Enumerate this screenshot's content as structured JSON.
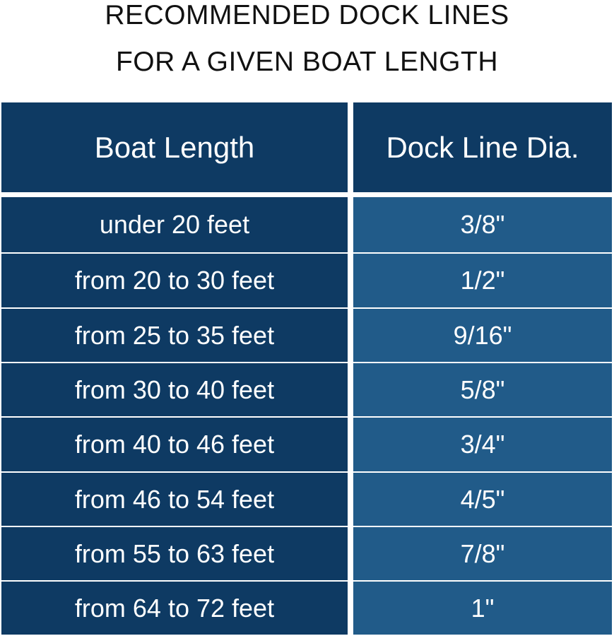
{
  "title": {
    "line1": "RECOMMENDED DOCK LINES",
    "line2": "FOR A GIVEN BOAT LENGTH"
  },
  "colors": {
    "header_bg": "#0e3a63",
    "left_column_bg": "#0e3a63",
    "right_column_bg": "#215b89",
    "text": "#ffffff"
  },
  "table": {
    "headers": [
      "Boat Length",
      "Dock Line Dia."
    ],
    "rows": [
      [
        "under 20 feet",
        "3/8\""
      ],
      [
        "from 20 to 30 feet",
        "1/2\""
      ],
      [
        "from 25 to 35 feet",
        "9/16\""
      ],
      [
        "from 30 to 40 feet",
        "5/8\""
      ],
      [
        "from 40 to 46 feet",
        "3/4\""
      ],
      [
        "from 46 to 54 feet",
        "4/5\""
      ],
      [
        "from 55 to 63 feet",
        "7/8\""
      ],
      [
        "from 64 to 72 feet",
        "1\""
      ]
    ]
  }
}
